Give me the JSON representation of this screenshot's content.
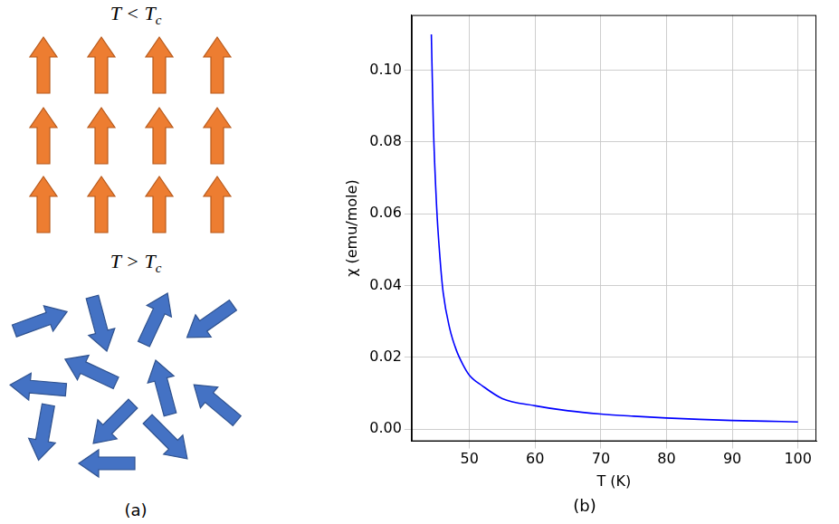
{
  "chart_data": {
    "type": "line",
    "x_label": "T (K)",
    "y_label": "χ (emu/mole)",
    "x": [
      44.2,
      44.5,
      45,
      45.5,
      46,
      47,
      48,
      49,
      50,
      52,
      55,
      60,
      65,
      70,
      75,
      80,
      85,
      90,
      95,
      100
    ],
    "values": [
      0.11,
      0.085,
      0.062,
      0.048,
      0.038,
      0.028,
      0.022,
      0.018,
      0.015,
      0.012,
      0.0085,
      0.0065,
      0.0051,
      0.0042,
      0.0036,
      0.0031,
      0.0027,
      0.0024,
      0.0022,
      0.002
    ],
    "color": "#0000ff",
    "xlim": [
      41.2,
      102.8
    ],
    "xticks": [
      50,
      60,
      70,
      80,
      90,
      100
    ],
    "ylim": [
      -0.0034,
      0.1154
    ],
    "yticks": [
      {
        "value": 0,
        "label": "0.00"
      },
      {
        "value": 0.02,
        "label": "0.02"
      },
      {
        "value": 0.04,
        "label": "0.04"
      },
      {
        "value": 0.06,
        "label": "0.06"
      },
      {
        "value": 0.08,
        "label": "0.08"
      },
      {
        "value": 0.1,
        "label": "0.10"
      }
    ],
    "grid": true
  },
  "diagram": {
    "panel_a": {
      "label": "(a)",
      "ordered": {
        "main": "T < T",
        "sub": "c"
      },
      "disordered": {
        "main": "T > T",
        "sub": "c"
      }
    },
    "panel_b": {
      "label": "(b)"
    }
  }
}
